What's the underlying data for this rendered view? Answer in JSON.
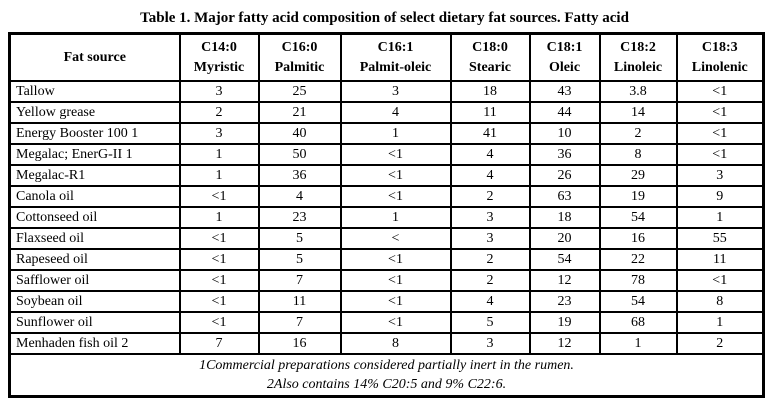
{
  "title": "Table 1. Major fatty acid composition of select dietary fat sources. Fatty acid",
  "table": {
    "columns": [
      {
        "code": "",
        "name": "Fat source"
      },
      {
        "code": "C14:0",
        "name": "Myristic"
      },
      {
        "code": "C16:0",
        "name": "Palmitic"
      },
      {
        "code": "C16:1",
        "name": "Palmit-oleic"
      },
      {
        "code": "C18:0",
        "name": "Stearic"
      },
      {
        "code": "C18:1",
        "name": "Oleic"
      },
      {
        "code": "C18:2",
        "name": "Linoleic"
      },
      {
        "code": "C18:3",
        "name": "Linolenic"
      }
    ],
    "rows": [
      {
        "label": "Tallow",
        "values": [
          "3",
          "25",
          "3",
          "18",
          "43",
          "3.8",
          "<1"
        ]
      },
      {
        "label": "Yellow grease",
        "values": [
          "2",
          "21",
          "4",
          "11",
          "44",
          "14",
          "<1"
        ]
      },
      {
        "label": "Energy Booster 100 1",
        "values": [
          "3",
          "40",
          "1",
          "41",
          "10",
          "2",
          "<1"
        ]
      },
      {
        "label": "Megalac; EnerG-II 1",
        "values": [
          "1",
          "50",
          "<1",
          "4",
          "36",
          "8",
          "<1"
        ]
      },
      {
        "label": "Megalac-R1",
        "values": [
          "1",
          "36",
          "<1",
          "4",
          "26",
          "29",
          "3"
        ]
      },
      {
        "label": "Canola oil",
        "values": [
          "<1",
          "4",
          "<1",
          "2",
          "63",
          "19",
          "9"
        ]
      },
      {
        "label": "Cottonseed oil",
        "values": [
          "1",
          "23",
          "1",
          "3",
          "18",
          "54",
          "1"
        ]
      },
      {
        "label": "Flaxseed oil",
        "values": [
          "<1",
          "5",
          "<",
          "3",
          "20",
          "16",
          "55"
        ]
      },
      {
        "label": "Rapeseed oil",
        "values": [
          "<1",
          "5",
          "<1",
          "2",
          "54",
          "22",
          "11"
        ]
      },
      {
        "label": "Safflower oil",
        "values": [
          "<1",
          "7",
          "<1",
          "2",
          "12",
          "78",
          "<1"
        ]
      },
      {
        "label": "Soybean oil",
        "values": [
          "<1",
          "11",
          "<1",
          "4",
          "23",
          "54",
          "8"
        ]
      },
      {
        "label": "Sunflower oil",
        "values": [
          "<1",
          "7",
          "<1",
          "5",
          "19",
          "68",
          "1"
        ]
      },
      {
        "label": "Menhaden fish oil 2",
        "values": [
          "7",
          "16",
          "8",
          "3",
          "12",
          "1",
          "2"
        ]
      }
    ],
    "footnotes": [
      "1Commercial preparations considered partially inert in the rumen.",
      "2Also contains 14% C20:5 and 9% C22:6."
    ]
  }
}
